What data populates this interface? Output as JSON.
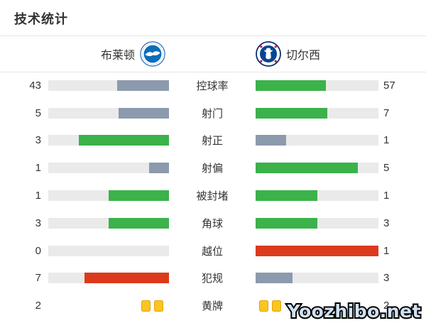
{
  "page": {
    "title": "技术统计"
  },
  "teams": {
    "home": {
      "name": "布莱顿",
      "logo": "brighton-crest"
    },
    "away": {
      "name": "切尔西",
      "logo": "chelsea-crest"
    }
  },
  "watermark": "Yoozhibo.net",
  "colors": {
    "green": "#3bb24a",
    "gray": "#8c9aae",
    "red": "#dc3a1c",
    "track": "#eaeaea",
    "card_fill": "#fcc51f",
    "card_border": "#dfa411",
    "brighton_blue": "#0d6db9",
    "chelsea_blue": "#034694"
  },
  "chart_data": {
    "type": "bar",
    "title": "技术统计",
    "orientation": "horizontal-mirrored",
    "teams": [
      "布莱顿",
      "切尔西"
    ],
    "rows": [
      {
        "label": "控球率",
        "home": 43,
        "away": 57,
        "home_style": "gray",
        "away_style": "green"
      },
      {
        "label": "射门",
        "home": 5,
        "away": 7,
        "home_style": "gray",
        "away_style": "green"
      },
      {
        "label": "射正",
        "home": 3,
        "away": 1,
        "home_style": "green",
        "away_style": "gray"
      },
      {
        "label": "射偏",
        "home": 1,
        "away": 5,
        "home_style": "gray",
        "away_style": "green"
      },
      {
        "label": "被封堵",
        "home": 1,
        "away": 1,
        "home_style": "green",
        "away_style": "green"
      },
      {
        "label": "角球",
        "home": 3,
        "away": 3,
        "home_style": "green",
        "away_style": "green"
      },
      {
        "label": "越位",
        "home": 0,
        "away": 1,
        "home_style": "none",
        "away_style": "red"
      },
      {
        "label": "犯规",
        "home": 7,
        "away": 3,
        "home_style": "red",
        "away_style": "gray"
      },
      {
        "label": "黄牌",
        "home": 2,
        "away": 2,
        "type": "cards"
      }
    ]
  }
}
